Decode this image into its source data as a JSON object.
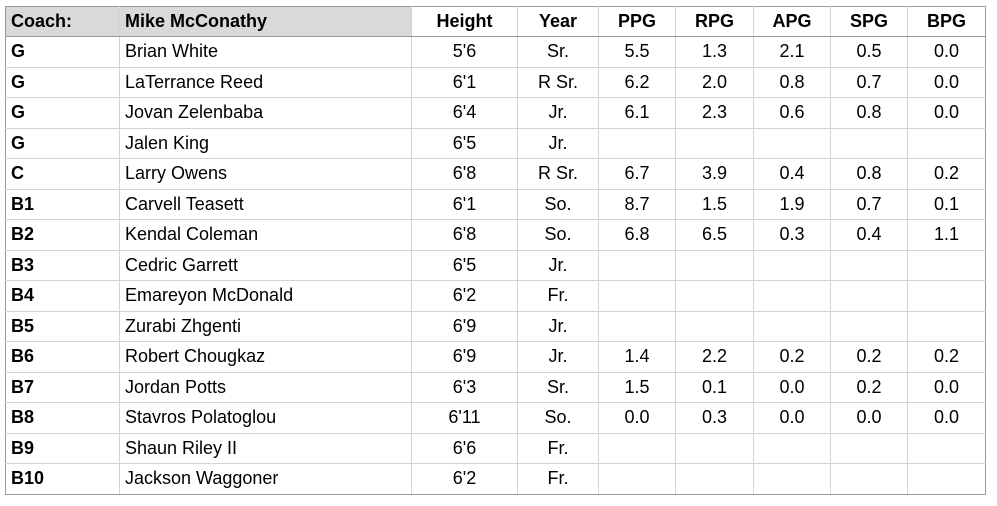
{
  "header": {
    "coach_label": "Coach:",
    "coach_name": "Mike McConathy",
    "columns": [
      "Height",
      "Year",
      "PPG",
      "RPG",
      "APG",
      "SPG",
      "BPG"
    ]
  },
  "rows": [
    {
      "pos": "G",
      "name": "Brian White",
      "height": "5'6",
      "year": "Sr.",
      "ppg": "5.5",
      "rpg": "1.3",
      "apg": "2.1",
      "spg": "0.5",
      "bpg": "0.0"
    },
    {
      "pos": "G",
      "name": "LaTerrance Reed",
      "height": "6'1",
      "year": "R Sr.",
      "ppg": "6.2",
      "rpg": "2.0",
      "apg": "0.8",
      "spg": "0.7",
      "bpg": "0.0"
    },
    {
      "pos": "G",
      "name": "Jovan Zelenbaba",
      "height": "6'4",
      "year": "Jr.",
      "ppg": "6.1",
      "rpg": "2.3",
      "apg": "0.6",
      "spg": "0.8",
      "bpg": "0.0"
    },
    {
      "pos": "G",
      "name": "Jalen King",
      "height": "6'5",
      "year": "Jr.",
      "ppg": "",
      "rpg": "",
      "apg": "",
      "spg": "",
      "bpg": ""
    },
    {
      "pos": "C",
      "name": "Larry Owens",
      "height": "6'8",
      "year": "R Sr.",
      "ppg": "6.7",
      "rpg": "3.9",
      "apg": "0.4",
      "spg": "0.8",
      "bpg": "0.2"
    },
    {
      "pos": "B1",
      "name": "Carvell Teasett",
      "height": "6'1",
      "year": "So.",
      "ppg": "8.7",
      "rpg": "1.5",
      "apg": "1.9",
      "spg": "0.7",
      "bpg": "0.1"
    },
    {
      "pos": "B2",
      "name": "Kendal Coleman",
      "height": "6'8",
      "year": "So.",
      "ppg": "6.8",
      "rpg": "6.5",
      "apg": "0.3",
      "spg": "0.4",
      "bpg": "1.1"
    },
    {
      "pos": "B3",
      "name": "Cedric Garrett",
      "height": "6'5",
      "year": "Jr.",
      "ppg": "",
      "rpg": "",
      "apg": "",
      "spg": "",
      "bpg": ""
    },
    {
      "pos": "B4",
      "name": "Emareyon McDonald",
      "height": "6'2",
      "year": "Fr.",
      "ppg": "",
      "rpg": "",
      "apg": "",
      "spg": "",
      "bpg": ""
    },
    {
      "pos": "B5",
      "name": "Zurabi Zhgenti",
      "height": "6'9",
      "year": "Jr.",
      "ppg": "",
      "rpg": "",
      "apg": "",
      "spg": "",
      "bpg": ""
    },
    {
      "pos": "B6",
      "name": "Robert Chougkaz",
      "height": "6'9",
      "year": "Jr.",
      "ppg": "1.4",
      "rpg": "2.2",
      "apg": "0.2",
      "spg": "0.2",
      "bpg": "0.2"
    },
    {
      "pos": "B7",
      "name": "Jordan Potts",
      "height": "6'3",
      "year": "Sr.",
      "ppg": "1.5",
      "rpg": "0.1",
      "apg": "0.0",
      "spg": "0.2",
      "bpg": "0.0"
    },
    {
      "pos": "B8",
      "name": "Stavros Polatoglou",
      "height": "6'11",
      "year": "So.",
      "ppg": "0.0",
      "rpg": "0.3",
      "apg": "0.0",
      "spg": "0.0",
      "bpg": "0.0"
    },
    {
      "pos": "B9",
      "name": "Shaun Riley II",
      "height": "6'6",
      "year": "Fr.",
      "ppg": "",
      "rpg": "",
      "apg": "",
      "spg": "",
      "bpg": ""
    },
    {
      "pos": "B10",
      "name": "Jackson Waggoner",
      "height": "6'2",
      "year": "Fr.",
      "ppg": "",
      "rpg": "",
      "apg": "",
      "spg": "",
      "bpg": ""
    }
  ]
}
